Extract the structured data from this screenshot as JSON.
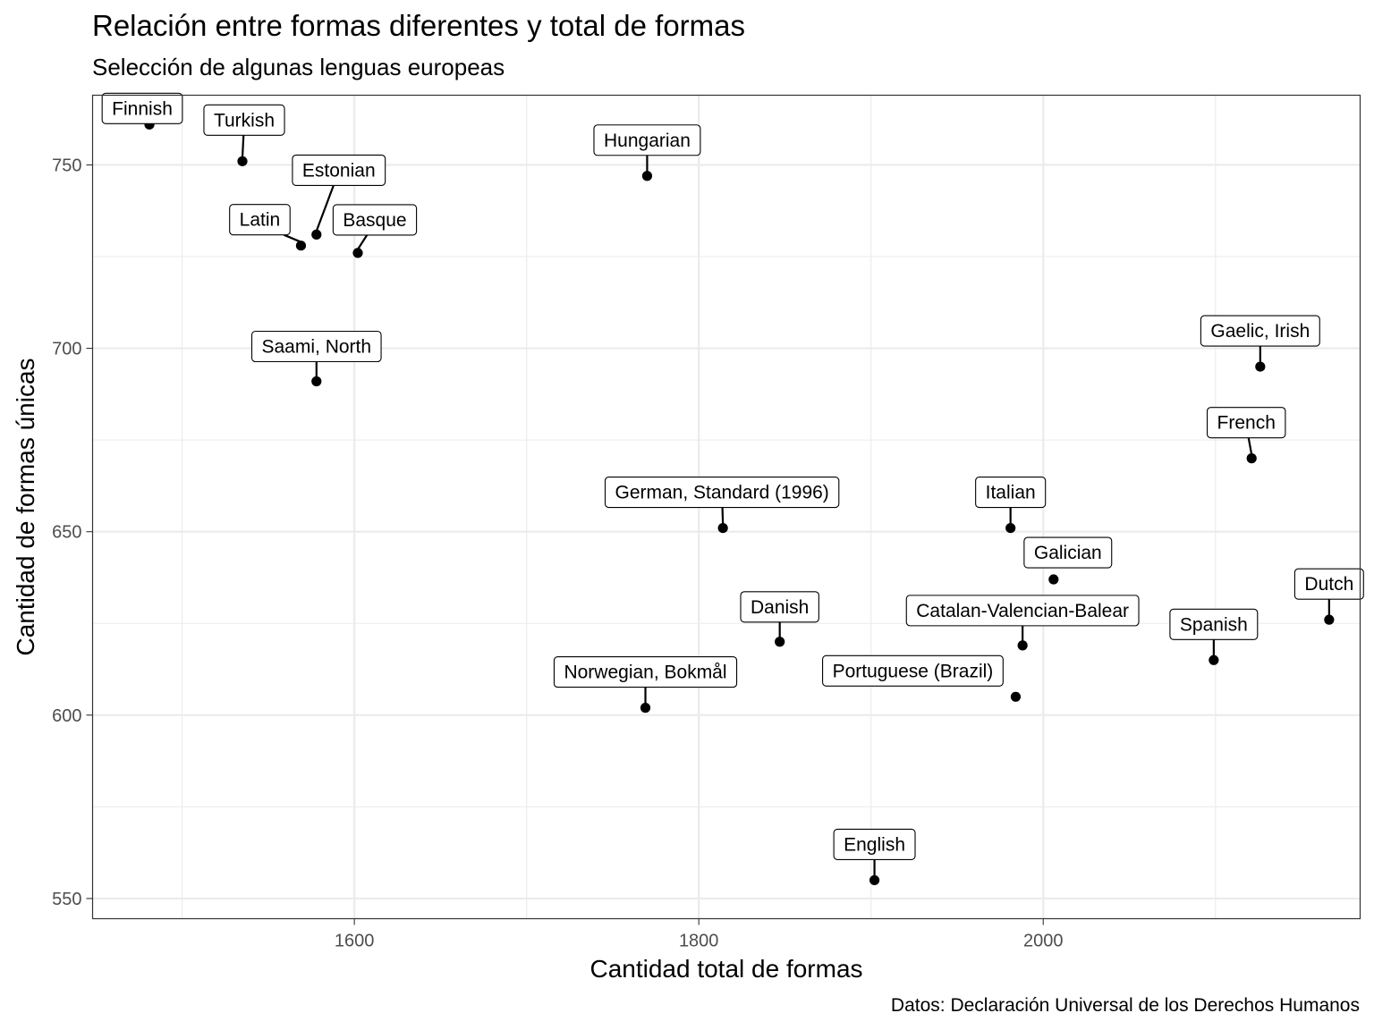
{
  "chart_data": {
    "type": "scatter",
    "title": "Relación entre formas diferentes y total de formas",
    "subtitle": "Selección de algunas lenguas europeas",
    "xlabel": "Cantidad total de formas",
    "ylabel": "Cantidad de formas únicas",
    "caption": "Datos: Declaración Universal de los Derechos Humanos",
    "xlim": [
      1448,
      2184
    ],
    "ylim": [
      544.5,
      769
    ],
    "x_ticks": [
      1600,
      1800,
      2000
    ],
    "y_ticks": [
      550,
      600,
      650,
      700,
      750
    ],
    "grid": true,
    "points": [
      {
        "label": "Finnish",
        "x": 1481,
        "y": 761
      },
      {
        "label": "Turkish",
        "x": 1535,
        "y": 751
      },
      {
        "label": "Hungarian",
        "x": 1770,
        "y": 747
      },
      {
        "label": "Estonian",
        "x": 1578,
        "y": 731
      },
      {
        "label": "Latin",
        "x": 1569,
        "y": 728
      },
      {
        "label": "Basque",
        "x": 1602,
        "y": 726
      },
      {
        "label": "Saami, North",
        "x": 1578,
        "y": 691
      },
      {
        "label": "Gaelic, Irish",
        "x": 2126,
        "y": 695
      },
      {
        "label": "French",
        "x": 2121,
        "y": 670
      },
      {
        "label": "German, Standard (1996)",
        "x": 1814,
        "y": 651
      },
      {
        "label": "Italian",
        "x": 1981,
        "y": 651
      },
      {
        "label": "Galician",
        "x": 2006,
        "y": 637
      },
      {
        "label": "Dutch",
        "x": 2166,
        "y": 626
      },
      {
        "label": "Danish",
        "x": 1847,
        "y": 620
      },
      {
        "label": "Catalan-Valencian-Balear",
        "x": 1988,
        "y": 619
      },
      {
        "label": "Spanish",
        "x": 2099,
        "y": 615
      },
      {
        "label": "Portuguese (Brazil)",
        "x": 1984,
        "y": 605
      },
      {
        "label": "Norwegian, Bokmål",
        "x": 1769,
        "y": 602
      },
      {
        "label": "English",
        "x": 1902,
        "y": 555
      }
    ]
  }
}
